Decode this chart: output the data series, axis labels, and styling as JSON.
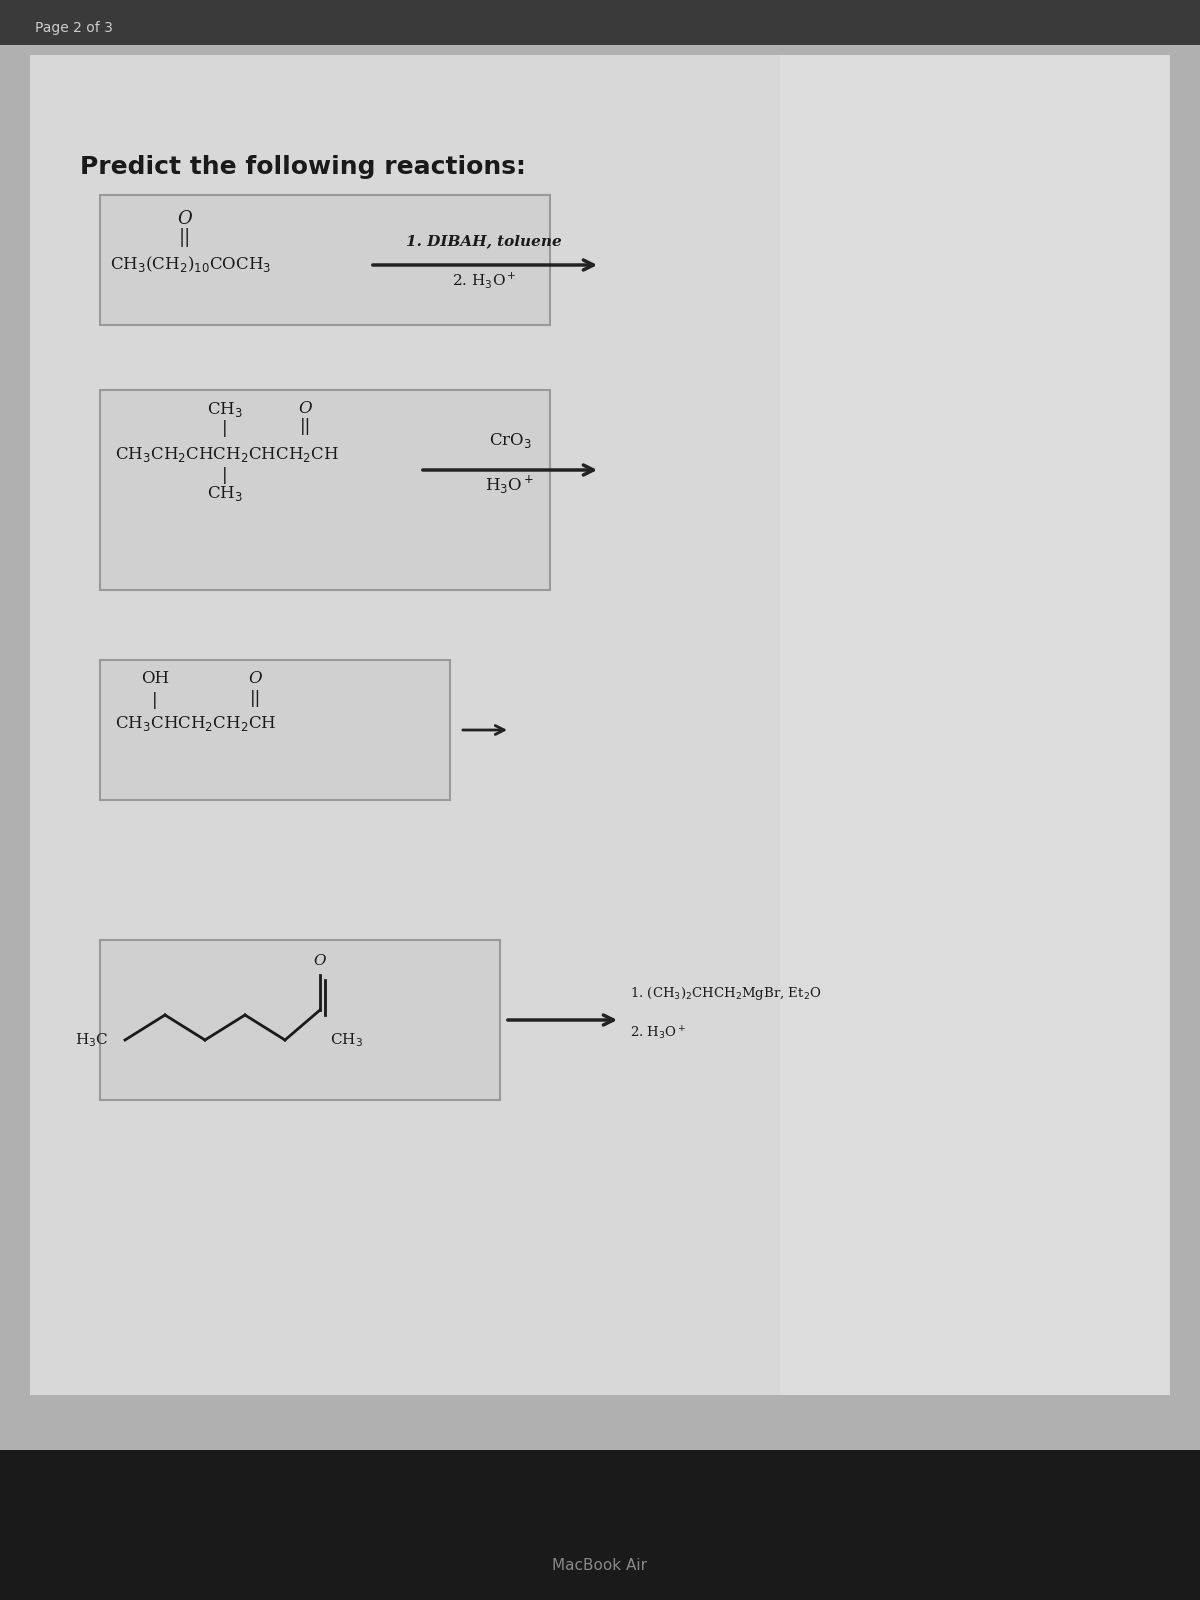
{
  "page_label": "Page 2 of 3",
  "title": "Predict the following reactions:",
  "bg_outer": "#b0b0b0",
  "bg_toolbar": "#3a3a3a",
  "bg_page": "#dcdcdc",
  "text_color": "#1a1a1a",
  "box_bg": "#cccccc",
  "box_edge": "#888888",
  "arrow_color": "#222222",
  "r1_mol": "CH₃(CH₂)₁₀COCH₃",
  "r1_r1": "1. DIBAH, toluene",
  "r1_r2": "2. H₃O⁺",
  "r2_mol": "CH₃CH₂CHCH₂CHCH₂CH",
  "r2_ch3_top": "CH₃",
  "r2_o_top": "O",
  "r2_ch3_bot": "CH₃",
  "r2_r1": "CrO₃",
  "r2_r2": "H₃O⁺",
  "r3_mol": "CH₃CHCH₂CH₂CH",
  "r3_oh": "OH",
  "r3_o": "O",
  "r4_r1": "1. (CH₃)₂CHCH₂MgBr, Et₂O",
  "r4_r2": "2. H₃O⁺",
  "r4_h3c": "H₃C",
  "r4_ch3": "CH₃"
}
